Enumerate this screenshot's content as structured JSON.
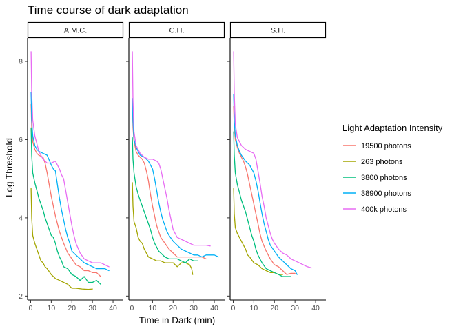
{
  "chart_data": {
    "type": "line",
    "title": "Time course of dark adaptation",
    "xlabel": "Time in Dark (min)",
    "ylabel": "Log Threshold",
    "xlim": [
      -1.5,
      45
    ],
    "ylim": [
      1.9,
      8.6
    ],
    "xticks": [
      0,
      10,
      20,
      30,
      40
    ],
    "yticks": [
      2,
      4,
      6,
      8
    ],
    "grid": false,
    "legend": {
      "title": "Light Adaptation Intensity",
      "placement": "right"
    },
    "colors": {
      "19500 photons": "#F8766D",
      "263 photons": "#A3A500",
      "3800 photons": "#00BF7D",
      "38900 photons": "#00B0F6",
      "400k photons": "#E76BF3"
    },
    "series_order": [
      "19500 photons",
      "263 photons",
      "3800 photons",
      "38900 photons",
      "400k photons"
    ],
    "panels": [
      {
        "label": "A.M.C.",
        "series": [
          {
            "name": "19500 photons",
            "x": [
              0.2,
              0.5,
              1,
              2,
              3,
              4,
              6,
              7,
              8,
              9,
              10,
              11,
              12,
              13,
              14,
              15,
              16,
              18,
              20,
              22,
              24,
              26,
              28,
              30,
              32,
              34
            ],
            "y": [
              6.9,
              6.3,
              5.95,
              5.75,
              5.65,
              5.6,
              5.55,
              5.4,
              5.15,
              4.85,
              4.55,
              4.3,
              4.05,
              3.85,
              3.65,
              3.5,
              3.35,
              3.1,
              2.95,
              2.8,
              2.75,
              2.65,
              2.65,
              2.6,
              2.6,
              2.5
            ]
          },
          {
            "name": "263 photons",
            "x": [
              0.2,
              0.5,
              1,
              2,
              3,
              4,
              5,
              6,
              7,
              8,
              10,
              12,
              14,
              16,
              18,
              20,
              22,
              25,
              28,
              30
            ],
            "y": [
              4.75,
              4.0,
              3.55,
              3.35,
              3.2,
              3.05,
              2.9,
              2.85,
              2.75,
              2.7,
              2.55,
              2.45,
              2.4,
              2.35,
              2.3,
              2.2,
              2.2,
              2.18,
              2.17,
              2.18
            ]
          },
          {
            "name": "3800 photons",
            "x": [
              0.2,
              0.5,
              1,
              2,
              3,
              4,
              5,
              6,
              7,
              8,
              9,
              10,
              11,
              12,
              13,
              14,
              15,
              16,
              18,
              20,
              22,
              24,
              26,
              28,
              30,
              32,
              34
            ],
            "y": [
              6.3,
              5.6,
              5.15,
              4.9,
              4.7,
              4.5,
              4.35,
              4.2,
              4.0,
              3.85,
              3.7,
              3.55,
              3.5,
              3.35,
              3.15,
              3.0,
              2.9,
              2.75,
              2.7,
              2.55,
              2.5,
              2.4,
              2.5,
              2.35,
              2.35,
              2.4,
              2.3
            ]
          },
          {
            "name": "38900 photons",
            "x": [
              0.2,
              0.5,
              1,
              2,
              3,
              4,
              6,
              8,
              10,
              11,
              12,
              13,
              14,
              15,
              16,
              17,
              18,
              19,
              20,
              22,
              24,
              26,
              28,
              30,
              32,
              34,
              36,
              38
            ],
            "y": [
              7.2,
              6.5,
              6.1,
              5.85,
              5.75,
              5.7,
              5.65,
              5.6,
              5.35,
              5.25,
              5.2,
              4.85,
              4.5,
              4.2,
              3.95,
              3.7,
              3.5,
              3.35,
              3.15,
              3.05,
              2.95,
              2.85,
              2.8,
              2.75,
              2.7,
              2.7,
              2.7,
              2.65
            ]
          },
          {
            "name": "400k photons",
            "x": [
              0.2,
              0.5,
              1,
              2,
              4,
              6,
              8,
              10,
              12,
              14,
              15,
              16,
              17,
              18,
              19,
              20,
              21,
              22,
              24,
              26,
              28,
              30,
              32,
              34,
              36,
              38
            ],
            "y": [
              8.25,
              7.2,
              6.5,
              6.1,
              5.7,
              5.5,
              5.4,
              5.4,
              5.45,
              5.25,
              5.1,
              5.0,
              4.7,
              4.4,
              4.1,
              3.8,
              3.55,
              3.35,
              3.1,
              2.95,
              2.9,
              2.85,
              2.85,
              2.85,
              2.8,
              2.75
            ]
          }
        ]
      },
      {
        "label": "C.H.",
        "series": [
          {
            "name": "19500 photons",
            "x": [
              0.2,
              0.5,
              1,
              2,
              3,
              4,
              5,
              6,
              7,
              8,
              9,
              10,
              11,
              12,
              13,
              14,
              16,
              18,
              20,
              22,
              24,
              26,
              28,
              30,
              32,
              34,
              36
            ],
            "y": [
              6.9,
              6.3,
              5.95,
              5.7,
              5.6,
              5.55,
              5.5,
              5.4,
              5.2,
              4.95,
              4.6,
              4.3,
              4.05,
              3.8,
              3.65,
              3.5,
              3.35,
              3.2,
              3.1,
              3.0,
              3.0,
              3.0,
              3.0,
              3.0,
              3.0,
              3.0,
              2.95
            ]
          },
          {
            "name": "263 photons",
            "x": [
              0.2,
              0.5,
              1,
              2,
              3,
              4,
              5,
              6,
              7,
              8,
              10,
              12,
              14,
              16,
              18,
              20,
              22,
              24,
              26,
              28,
              29,
              29.5
            ],
            "y": [
              4.9,
              4.3,
              3.9,
              3.75,
              3.5,
              3.4,
              3.35,
              3.2,
              3.1,
              3.0,
              2.95,
              2.9,
              2.9,
              2.85,
              2.85,
              2.85,
              2.75,
              2.85,
              2.85,
              2.8,
              2.7,
              2.55
            ]
          },
          {
            "name": "3800 photons",
            "x": [
              0.2,
              0.5,
              1,
              2,
              3,
              4,
              5,
              6,
              7,
              8,
              9,
              10,
              11,
              12,
              13,
              14,
              16,
              18,
              20,
              22,
              24,
              26,
              28,
              30,
              32
            ],
            "y": [
              6.05,
              5.5,
              5.15,
              4.8,
              4.6,
              4.45,
              4.3,
              4.15,
              4.0,
              3.85,
              3.7,
              3.5,
              3.35,
              3.25,
              3.15,
              3.1,
              3.0,
              2.95,
              2.95,
              2.95,
              2.9,
              2.85,
              2.95,
              2.9,
              2.9
            ]
          },
          {
            "name": "38900 photons",
            "x": [
              0.2,
              0.5,
              1,
              2,
              3,
              4,
              6,
              8,
              10,
              11,
              12,
              13,
              14,
              15,
              16,
              17,
              18,
              20,
              22,
              24,
              26,
              28,
              30,
              32,
              34,
              36,
              38,
              40,
              42
            ],
            "y": [
              7.05,
              6.45,
              6.0,
              5.8,
              5.7,
              5.6,
              5.55,
              5.45,
              5.25,
              5.0,
              4.7,
              4.4,
              4.15,
              3.95,
              3.8,
              3.65,
              3.55,
              3.4,
              3.3,
              3.2,
              3.15,
              3.1,
              3.05,
              3.05,
              3.0,
              3.05,
              3.05,
              3.05,
              3.0
            ]
          },
          {
            "name": "400k photons",
            "x": [
              0.2,
              0.5,
              1,
              2,
              4,
              6,
              8,
              10,
              12,
              13,
              14,
              15,
              16,
              17,
              18,
              19,
              20,
              22,
              24,
              26,
              28,
              30,
              32,
              34,
              36,
              38
            ],
            "y": [
              8.25,
              7.0,
              6.2,
              5.85,
              5.65,
              5.55,
              5.5,
              5.5,
              5.45,
              5.4,
              5.25,
              5.0,
              4.75,
              4.5,
              4.2,
              3.95,
              3.7,
              3.5,
              3.45,
              3.4,
              3.35,
              3.3,
              3.3,
              3.3,
              3.3,
              3.28
            ]
          }
        ]
      },
      {
        "label": "S.H.",
        "series": [
          {
            "name": "19500 photons",
            "x": [
              0.2,
              0.5,
              1,
              2,
              3,
              4,
              5,
              6,
              7,
              8,
              9,
              10,
              11,
              12,
              13,
              14,
              16,
              18,
              20,
              22,
              24,
              26,
              28,
              30
            ],
            "y": [
              6.85,
              6.3,
              6.0,
              5.8,
              5.65,
              5.55,
              5.45,
              5.3,
              5.1,
              4.85,
              4.6,
              4.35,
              4.1,
              3.85,
              3.6,
              3.4,
              3.15,
              2.95,
              2.8,
              2.75,
              2.65,
              2.55,
              2.58,
              2.58
            ]
          },
          {
            "name": "263 photons",
            "x": [
              0.2,
              0.5,
              1,
              2,
              3,
              4,
              5,
              6,
              7,
              8,
              10,
              12,
              14,
              16,
              18,
              20,
              22,
              24
            ],
            "y": [
              4.75,
              4.1,
              3.75,
              3.6,
              3.5,
              3.4,
              3.3,
              3.2,
              3.05,
              3.0,
              2.85,
              2.8,
              2.7,
              2.65,
              2.6,
              2.6,
              2.55,
              2.55
            ]
          },
          {
            "name": "3800 photons",
            "x": [
              0.2,
              0.5,
              1,
              2,
              3,
              4,
              5,
              6,
              7,
              8,
              9,
              10,
              11,
              12,
              13,
              14,
              16,
              18,
              20,
              22,
              24,
              26,
              28
            ],
            "y": [
              6.2,
              5.6,
              5.15,
              4.85,
              4.65,
              4.45,
              4.3,
              4.15,
              3.95,
              3.75,
              3.55,
              3.4,
              3.2,
              3.05,
              2.95,
              2.85,
              2.7,
              2.65,
              2.6,
              2.55,
              2.5,
              2.5,
              2.5
            ]
          },
          {
            "name": "38900 photons",
            "x": [
              0.2,
              0.5,
              1,
              2,
              3,
              4,
              6,
              8,
              10,
              11,
              12,
              13,
              14,
              15,
              16,
              17,
              18,
              20,
              22,
              24,
              26,
              28,
              30,
              31
            ],
            "y": [
              7.15,
              6.5,
              6.1,
              5.85,
              5.7,
              5.6,
              5.45,
              5.35,
              5.15,
              4.95,
              4.7,
              4.4,
              4.1,
              3.85,
              3.65,
              3.45,
              3.3,
              3.15,
              3.0,
              2.9,
              2.8,
              2.7,
              2.65,
              2.55
            ]
          },
          {
            "name": "400k photons",
            "x": [
              0.2,
              0.5,
              1,
              2,
              4,
              6,
              8,
              10,
              11,
              12,
              13,
              14,
              15,
              16,
              17,
              18,
              19,
              20,
              22,
              24,
              26,
              28,
              30,
              32,
              34,
              36,
              38
            ],
            "y": [
              8.25,
              7.2,
              6.4,
              6.05,
              5.85,
              5.75,
              5.7,
              5.65,
              5.5,
              5.2,
              4.9,
              4.55,
              4.3,
              4.0,
              3.8,
              3.6,
              3.45,
              3.35,
              3.2,
              3.1,
              3.05,
              2.95,
              2.9,
              2.85,
              2.8,
              2.75,
              2.72
            ]
          }
        ]
      }
    ]
  }
}
